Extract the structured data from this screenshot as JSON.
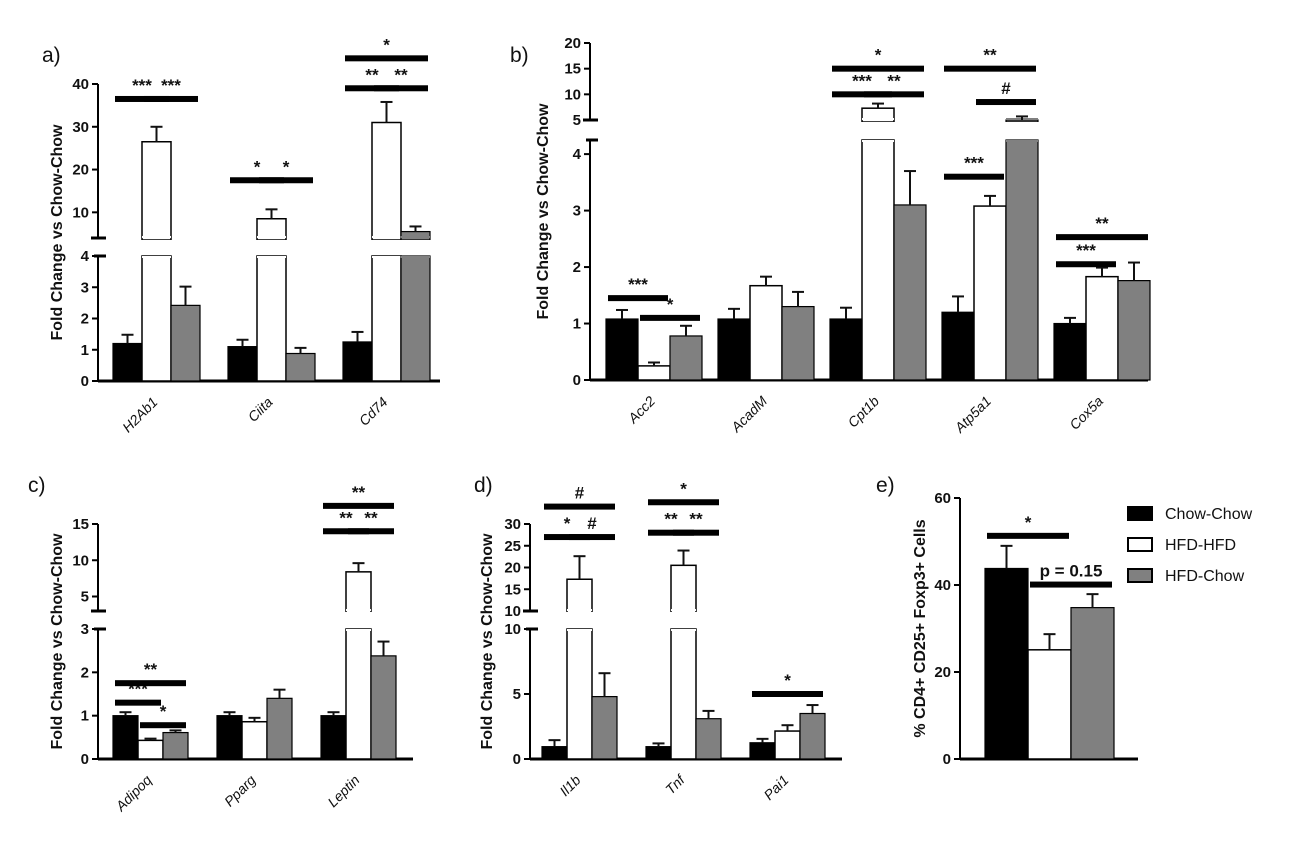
{
  "legend": [
    {
      "name": "Chow-Chow",
      "color": "#000000"
    },
    {
      "name": "HFD-HFD",
      "color": "#ffffff"
    },
    {
      "name": "HFD-Chow",
      "color": "#808080"
    }
  ],
  "chart_data": [
    {
      "panel": "a)",
      "type": "bar",
      "ylabel": "Fold Change vs Chow-Chow",
      "categories": [
        "H2Ab1",
        "Ciita",
        "Cd74"
      ],
      "broken_axis": {
        "lower": {
          "range": [
            0,
            4
          ],
          "ticks": [
            0,
            1,
            2,
            3,
            4
          ]
        },
        "upper": {
          "range": [
            4,
            40
          ],
          "ticks": [
            10,
            20,
            30,
            40
          ]
        }
      },
      "series": [
        {
          "name": "Chow-Chow",
          "values": [
            1.2,
            1.1,
            1.25
          ],
          "errors": [
            0.28,
            0.22,
            0.32
          ]
        },
        {
          "name": "HFD-HFD",
          "values": [
            26.5,
            8.5,
            31.0
          ],
          "errors": [
            3.5,
            2.2,
            4.8
          ]
        },
        {
          "name": "HFD-Chow",
          "values": [
            2.42,
            0.88,
            5.5
          ],
          "errors": [
            0.6,
            0.18,
            1.2
          ]
        }
      ],
      "significance": [
        {
          "category": "H2Ab1",
          "pair": [
            "Chow-Chow",
            "HFD-HFD"
          ],
          "label": "***",
          "y": 36.5
        },
        {
          "category": "H2Ab1",
          "pair": [
            "HFD-HFD",
            "HFD-Chow"
          ],
          "label": "***",
          "y": 36.5
        },
        {
          "category": "Ciita",
          "pair": [
            "Chow-Chow",
            "HFD-HFD"
          ],
          "label": "*",
          "y": 17.5
        },
        {
          "category": "Ciita",
          "pair": [
            "HFD-HFD",
            "HFD-Chow"
          ],
          "label": "*",
          "y": 17.5
        },
        {
          "category": "Cd74",
          "pair": [
            "Chow-Chow",
            "HFD-HFD"
          ],
          "label": "**",
          "y": 39
        },
        {
          "category": "Cd74",
          "pair": [
            "HFD-HFD",
            "HFD-Chow"
          ],
          "label": "**",
          "y": 39
        },
        {
          "category": "Cd74",
          "pair": [
            "Chow-Chow",
            "HFD-Chow"
          ],
          "label": "*",
          "y": 46
        }
      ]
    },
    {
      "panel": "b)",
      "type": "bar",
      "ylabel": "Fold Change vs Chow-Chow",
      "categories": [
        "Acc2",
        "AcadM",
        "Cpt1b",
        "Atp5a1",
        "Cox5a"
      ],
      "broken_axis": {
        "lower": {
          "range": [
            0,
            4.25
          ],
          "ticks": [
            0,
            1,
            2,
            3,
            4
          ]
        },
        "upper": {
          "range": [
            5,
            20
          ],
          "ticks": [
            5,
            10,
            15,
            20
          ]
        }
      },
      "series": [
        {
          "name": "Chow-Chow",
          "values": [
            1.08,
            1.08,
            1.08,
            1.2,
            1.0
          ],
          "errors": [
            0.16,
            0.18,
            0.2,
            0.28,
            0.1
          ]
        },
        {
          "name": "HFD-HFD",
          "values": [
            0.25,
            1.67,
            7.3,
            3.08,
            1.83
          ],
          "errors": [
            0.06,
            0.16,
            0.9,
            0.18,
            0.16
          ]
        },
        {
          "name": "HFD-Chow",
          "values": [
            0.78,
            1.3,
            3.1,
            5.0,
            1.76
          ],
          "errors": [
            0.18,
            0.26,
            0.6,
            0.7,
            0.32
          ]
        }
      ],
      "significance": [
        {
          "category": "Acc2",
          "pair": [
            "Chow-Chow",
            "HFD-HFD"
          ],
          "label": "***",
          "y": 1.45
        },
        {
          "category": "Acc2",
          "pair": [
            "HFD-HFD",
            "HFD-Chow"
          ],
          "label": "*",
          "y": 1.1
        },
        {
          "category": "Cpt1b",
          "pair": [
            "Chow-Chow",
            "HFD-HFD"
          ],
          "label": "***",
          "y": 10
        },
        {
          "category": "Cpt1b",
          "pair": [
            "HFD-HFD",
            "HFD-Chow"
          ],
          "label": "**",
          "y": 10
        },
        {
          "category": "Cpt1b",
          "pair": [
            "Chow-Chow",
            "HFD-Chow"
          ],
          "label": "*",
          "y": 15
        },
        {
          "category": "Atp5a1",
          "pair": [
            "Chow-Chow",
            "HFD-HFD"
          ],
          "label": "***",
          "y": 3.6
        },
        {
          "category": "Atp5a1",
          "pair": [
            "HFD-HFD",
            "HFD-Chow"
          ],
          "label": "#",
          "y": 8.5
        },
        {
          "category": "Atp5a1",
          "pair": [
            "Chow-Chow",
            "HFD-Chow"
          ],
          "label": "**",
          "y": 15
        },
        {
          "category": "Cox5a",
          "pair": [
            "Chow-Chow",
            "HFD-HFD"
          ],
          "label": "***",
          "y": 2.05
        },
        {
          "category": "Cox5a",
          "pair": [
            "Chow-Chow",
            "HFD-Chow"
          ],
          "label": "**",
          "y": 2.53
        }
      ]
    },
    {
      "panel": "c)",
      "type": "bar",
      "ylabel": "Fold Change vs Chow-Chow",
      "categories": [
        "Adipoq",
        "Pparg",
        "Leptin"
      ],
      "broken_axis": {
        "lower": {
          "range": [
            0,
            3
          ],
          "ticks": [
            0,
            1,
            2,
            3
          ]
        },
        "upper": {
          "range": [
            3,
            15
          ],
          "ticks": [
            5,
            10,
            15
          ]
        }
      },
      "series": [
        {
          "name": "Chow-Chow",
          "values": [
            1.0,
            1.0,
            1.0
          ],
          "errors": [
            0.08,
            0.08,
            0.08
          ]
        },
        {
          "name": "HFD-HFD",
          "values": [
            0.43,
            0.86,
            8.4
          ],
          "errors": [
            0.04,
            0.09,
            1.2
          ]
        },
        {
          "name": "HFD-Chow",
          "values": [
            0.61,
            1.4,
            2.38
          ],
          "errors": [
            0.05,
            0.2,
            0.33
          ]
        }
      ],
      "significance": [
        {
          "category": "Adipoq",
          "pair": [
            "Chow-Chow",
            "HFD-HFD"
          ],
          "label": "***",
          "y": 1.3
        },
        {
          "category": "Adipoq",
          "pair": [
            "HFD-HFD",
            "HFD-Chow"
          ],
          "label": "*",
          "y": 0.78
        },
        {
          "category": "Adipoq",
          "pair": [
            "Chow-Chow",
            "HFD-Chow"
          ],
          "label": "**",
          "y": 1.75
        },
        {
          "category": "Leptin",
          "pair": [
            "Chow-Chow",
            "HFD-HFD"
          ],
          "label": "**",
          "y": 14
        },
        {
          "category": "Leptin",
          "pair": [
            "HFD-HFD",
            "HFD-Chow"
          ],
          "label": "**",
          "y": 14
        },
        {
          "category": "Leptin",
          "pair": [
            "Chow-Chow",
            "HFD-Chow"
          ],
          "label": "**",
          "y": 17.5
        }
      ]
    },
    {
      "panel": "d)",
      "type": "bar",
      "ylabel": "Fold Change vs Chow-Chow",
      "categories": [
        "Il1b",
        "Tnf",
        "Pai1"
      ],
      "broken_axis": {
        "lower": {
          "range": [
            0,
            10
          ],
          "ticks": [
            0,
            5,
            10
          ]
        },
        "upper": {
          "range": [
            10,
            30
          ],
          "ticks": [
            10,
            15,
            20,
            25,
            30
          ]
        }
      },
      "series": [
        {
          "name": "Chow-Chow",
          "values": [
            0.95,
            0.95,
            1.25
          ],
          "errors": [
            0.5,
            0.25,
            0.3
          ]
        },
        {
          "name": "HFD-HFD",
          "values": [
            17.3,
            20.5,
            2.15
          ],
          "errors": [
            5.3,
            3.4,
            0.45
          ]
        },
        {
          "name": "HFD-Chow",
          "values": [
            4.8,
            3.1,
            3.5
          ],
          "errors": [
            1.8,
            0.6,
            0.65
          ]
        }
      ],
      "significance": [
        {
          "category": "Il1b",
          "pair": [
            "Chow-Chow",
            "HFD-HFD"
          ],
          "label": "*",
          "y": 27
        },
        {
          "category": "Il1b",
          "pair": [
            "HFD-HFD",
            "HFD-Chow"
          ],
          "label": "#",
          "y": 27
        },
        {
          "category": "Il1b",
          "pair": [
            "Chow-Chow",
            "HFD-Chow"
          ],
          "label": "#",
          "y": 34
        },
        {
          "category": "Tnf",
          "pair": [
            "Chow-Chow",
            "HFD-HFD"
          ],
          "label": "**",
          "y": 28
        },
        {
          "category": "Tnf",
          "pair": [
            "HFD-HFD",
            "HFD-Chow"
          ],
          "label": "**",
          "y": 28
        },
        {
          "category": "Tnf",
          "pair": [
            "Chow-Chow",
            "HFD-Chow"
          ],
          "label": "*",
          "y": 35
        },
        {
          "category": "Pai1",
          "pair": [
            "Chow-Chow",
            "HFD-Chow"
          ],
          "label": "*",
          "y": 5.0
        }
      ]
    },
    {
      "panel": "e)",
      "type": "bar",
      "ylabel": "% CD4+ CD25+ Foxp3+ Cells",
      "categories": [
        ""
      ],
      "ylim": [
        0,
        60
      ],
      "yticks": [
        0,
        20,
        40,
        60
      ],
      "series": [
        {
          "name": "Chow-Chow",
          "values": [
            43.8
          ],
          "errors": [
            5.2
          ]
        },
        {
          "name": "HFD-HFD",
          "values": [
            25.1
          ],
          "errors": [
            3.6
          ]
        },
        {
          "name": "HFD-Chow",
          "values": [
            34.8
          ],
          "errors": [
            3.1
          ]
        }
      ],
      "significance": [
        {
          "pair": [
            "Chow-Chow",
            "HFD-HFD"
          ],
          "label": "*",
          "y": 51.3
        },
        {
          "pair": [
            "HFD-HFD",
            "HFD-Chow"
          ],
          "label": "p = 0.15",
          "y": 40.1
        }
      ]
    }
  ]
}
